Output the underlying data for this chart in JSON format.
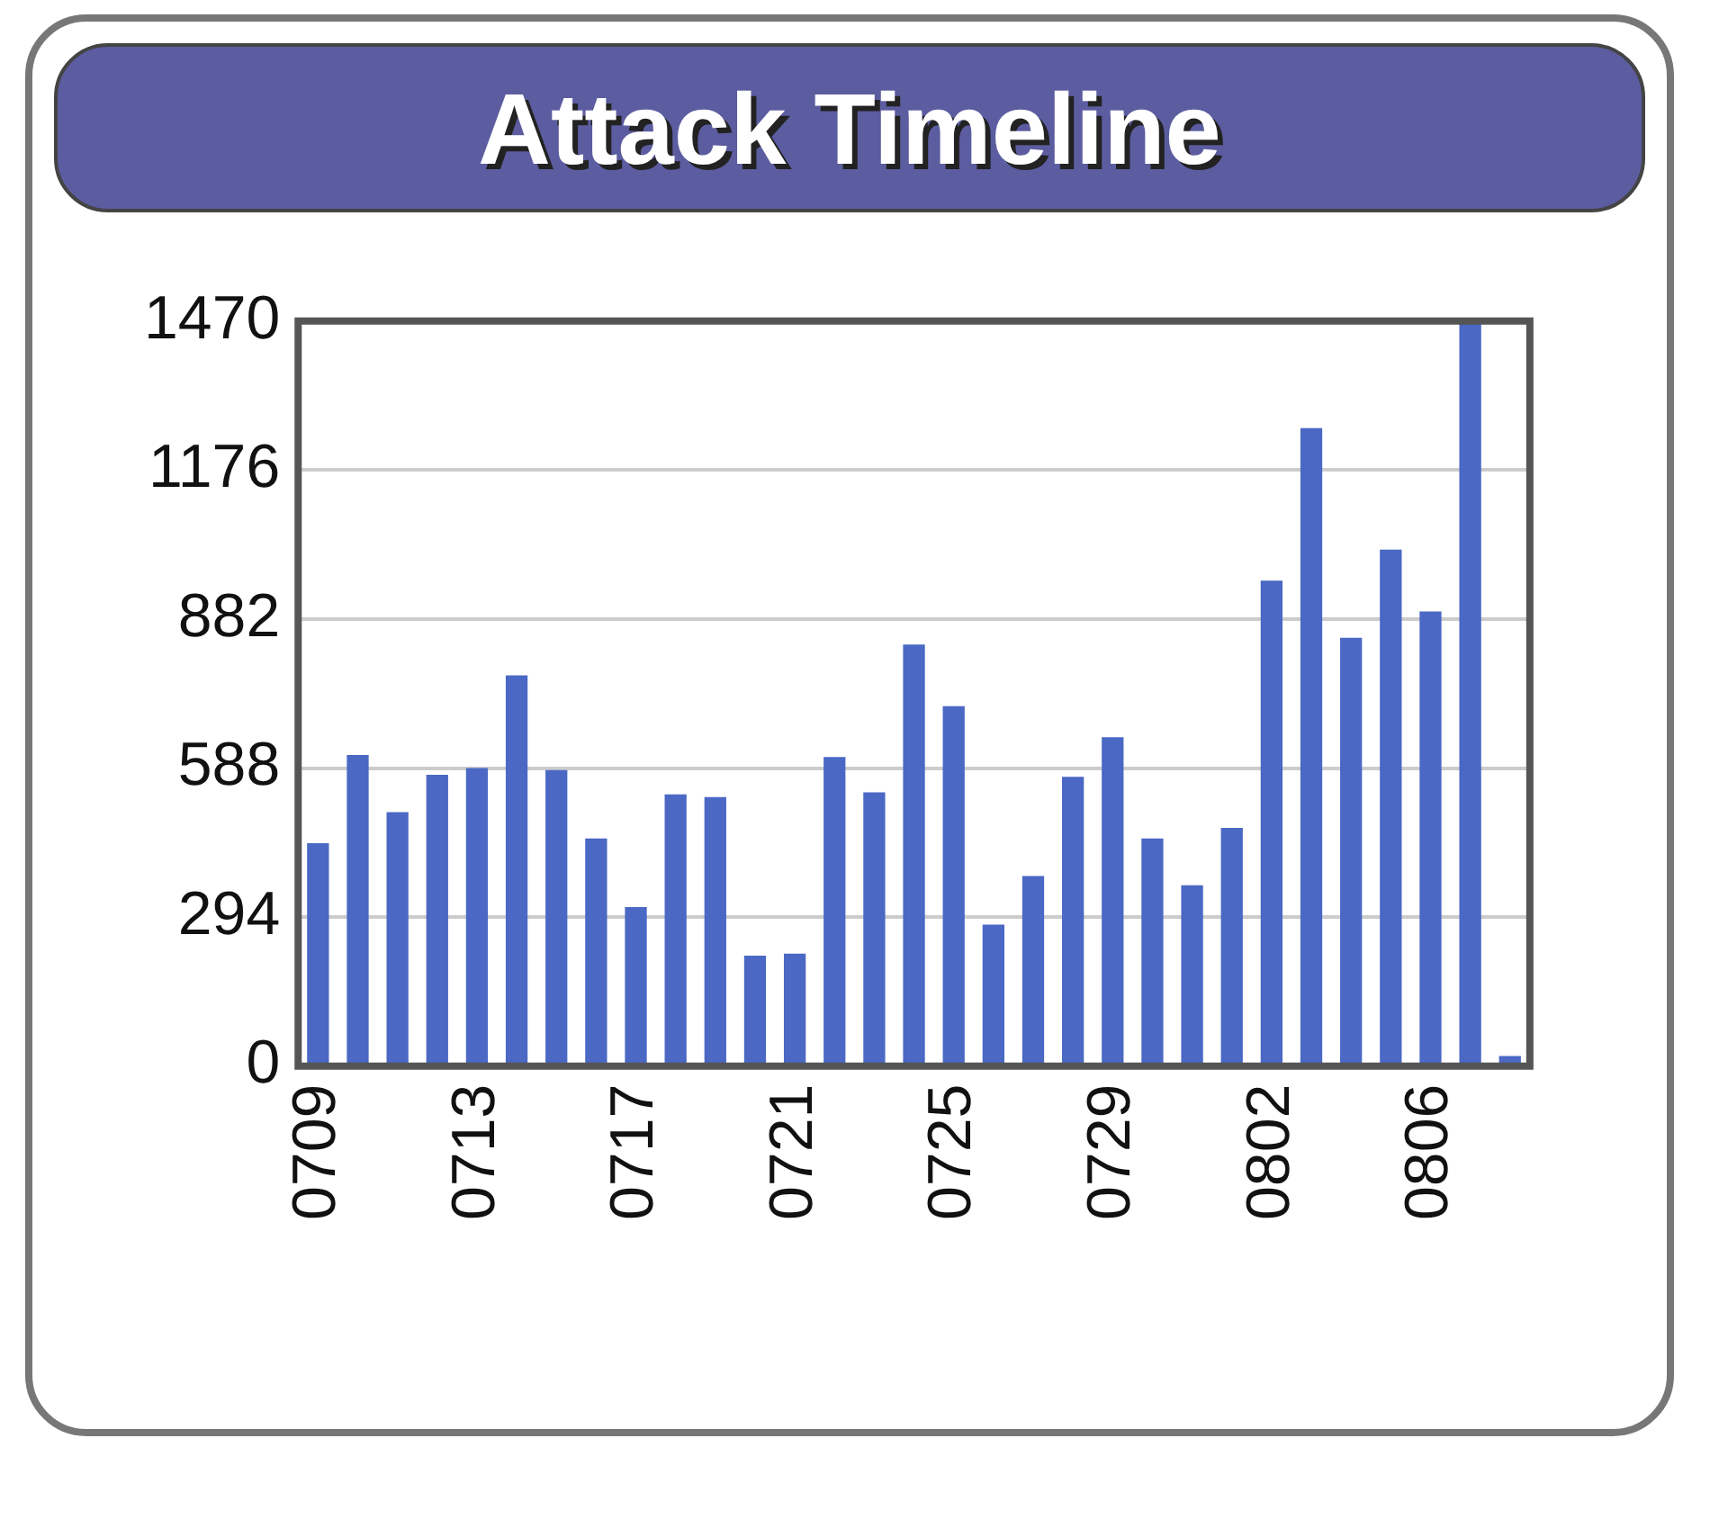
{
  "chart_data": {
    "type": "bar",
    "title": "Attack Timeline",
    "categories": [
      "0709",
      null,
      null,
      null,
      "0713",
      null,
      null,
      null,
      "0717",
      null,
      null,
      null,
      "0721",
      null,
      null,
      null,
      "0725",
      null,
      null,
      null,
      "0729",
      null,
      null,
      null,
      "0802",
      null,
      null,
      null,
      "0806",
      null,
      null
    ],
    "values": [
      440,
      614,
      501,
      575,
      588,
      771,
      584,
      449,
      314,
      536,
      531,
      218,
      222,
      610,
      540,
      832,
      710,
      279,
      375,
      571,
      649,
      449,
      357,
      470,
      958,
      1259,
      845,
      1019,
      897,
      1470,
      20
    ],
    "color": "#4a68c4",
    "ylim": [
      0,
      1470
    ],
    "yticks": [
      0,
      294,
      588,
      882,
      1176,
      1470
    ],
    "grid": "y",
    "legend": false
  }
}
